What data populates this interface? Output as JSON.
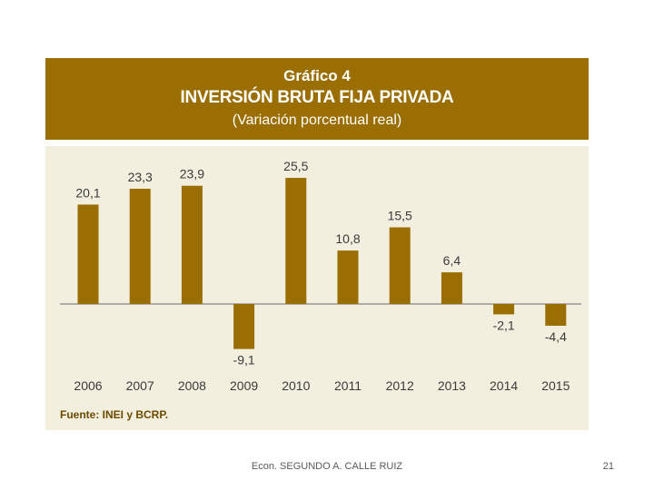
{
  "chart_data": {
    "type": "bar",
    "label": "Gráfico 4",
    "title": "INVERSIÓN BRUTA FIJA PRIVADA",
    "subtitle": "(Variación porcentual real)",
    "categories": [
      "2006",
      "2007",
      "2008",
      "2009",
      "2010",
      "2011",
      "2012",
      "2013",
      "2014",
      "2015"
    ],
    "values": [
      20.1,
      23.3,
      23.9,
      -9.1,
      25.5,
      10.8,
      15.5,
      6.4,
      -2.1,
      -4.4
    ],
    "value_labels": [
      "20,1",
      "23,3",
      "23,9",
      "-9,1",
      "25,5",
      "10,8",
      "15,5",
      "6,4",
      "-2,1",
      "-4,4"
    ],
    "source": "Fuente: INEI y BCRP.",
    "xlabel": "",
    "ylabel": "",
    "grid": false,
    "legend": "none",
    "bar_color": "#9a6e00",
    "header_color": "#9a6e00"
  },
  "footer": {
    "author": "Econ. SEGUNDO A. CALLE RUIZ",
    "page": "21"
  }
}
